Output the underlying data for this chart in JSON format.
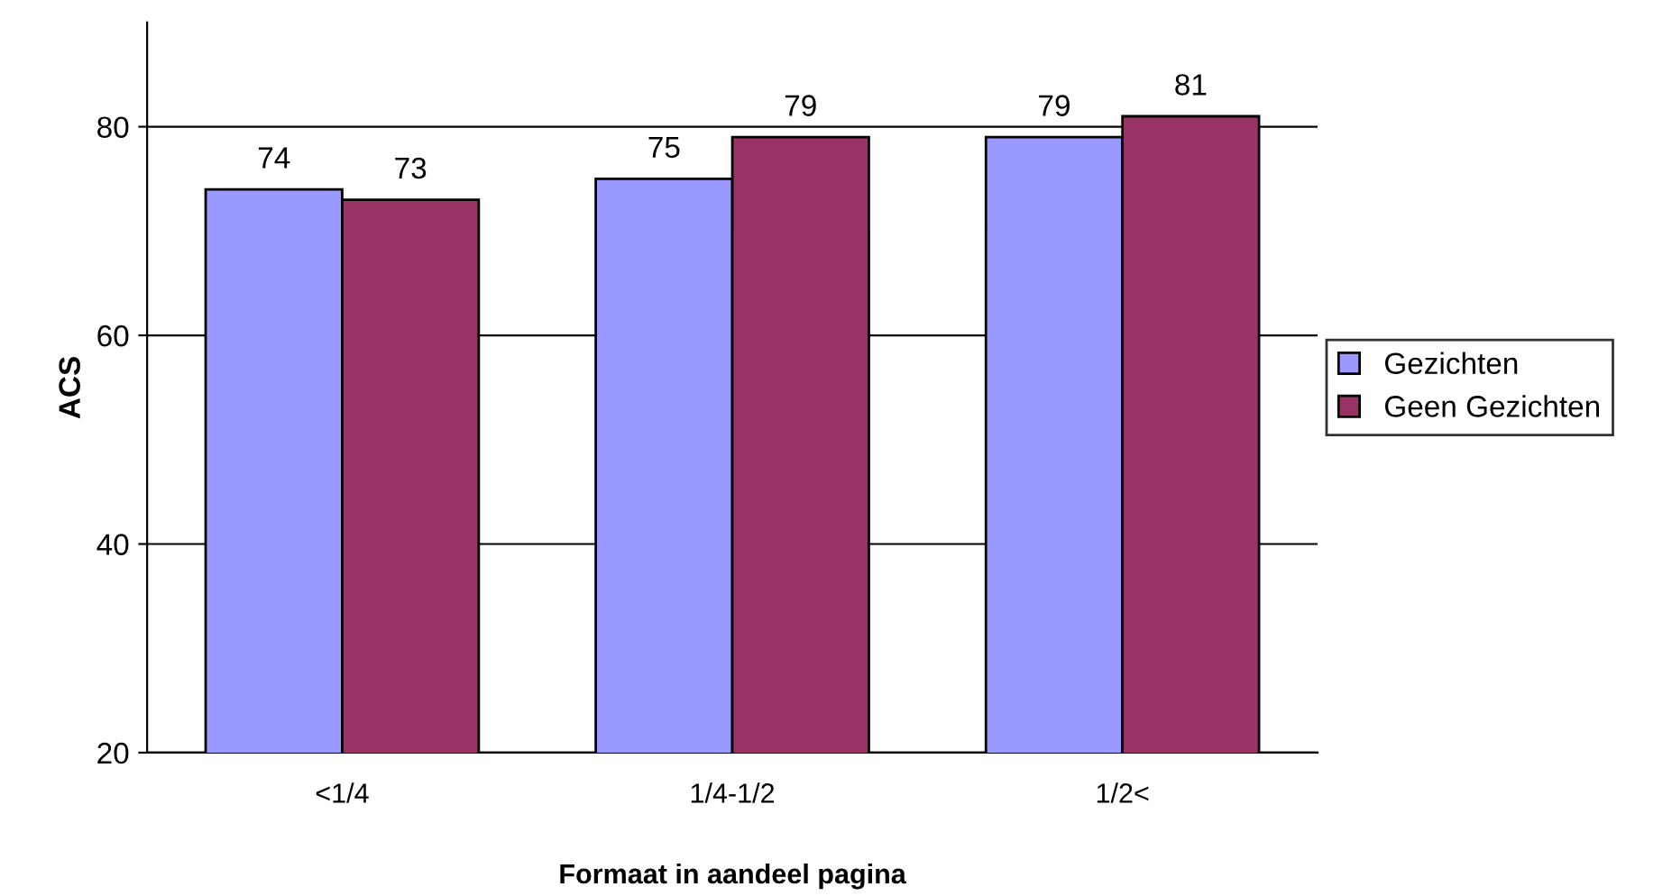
{
  "chart_data": {
    "type": "bar",
    "xlabel": "Formaat in aandeel pagina",
    "ylabel": "ACS",
    "categories": [
      "<1/4",
      "1/4-1/2",
      "1/2<"
    ],
    "series": [
      {
        "name": "Gezichten",
        "color": "#9999ff",
        "values": [
          74,
          75,
          79
        ]
      },
      {
        "name": "Geen Gezichten",
        "color": "#993366",
        "values": [
          73,
          79,
          81
        ]
      }
    ],
    "ylim": [
      20,
      90
    ],
    "yticks": [
      20,
      40,
      60,
      80
    ],
    "grid": "y",
    "legend": "right",
    "data_labels": true
  }
}
